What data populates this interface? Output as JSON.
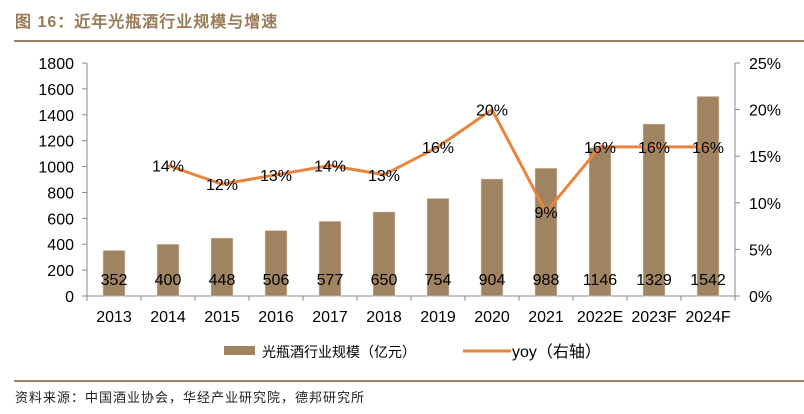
{
  "header": {
    "title": "图 16：近年光瓶酒行业规模与增速"
  },
  "footer": {
    "source": "资料来源：中国酒业协会，华经产业研究院，德邦研究所"
  },
  "colors": {
    "bar": "#a08462",
    "line": "#e8843c",
    "axis": "#888888",
    "accent": "#a08466"
  },
  "chart_data": {
    "type": "bar",
    "title": "近年光瓶酒行业规模与增速",
    "categories": [
      "2013",
      "2014",
      "2015",
      "2016",
      "2017",
      "2018",
      "2019",
      "2020",
      "2021",
      "2022E",
      "2023F",
      "2024F"
    ],
    "series": [
      {
        "name": "光瓶酒行业规模（亿元）",
        "type": "bar",
        "axis": "left",
        "values": [
          352,
          400,
          448,
          506,
          577,
          650,
          754,
          904,
          988,
          1146,
          1329,
          1542
        ],
        "labels": [
          "352",
          "400",
          "448",
          "506",
          "577",
          "650",
          "754",
          "904",
          "988",
          "1146",
          "1329",
          "1542"
        ]
      },
      {
        "name": "yoy（右轴）",
        "type": "line",
        "axis": "right",
        "values": [
          null,
          14,
          12,
          13,
          14,
          13,
          16,
          20,
          9,
          16,
          16,
          16
        ],
        "labels": [
          "",
          "14%",
          "12%",
          "13%",
          "14%",
          "13%",
          "16%",
          "20%",
          "9%",
          "16%",
          "16%",
          "16%"
        ]
      }
    ],
    "y_left": {
      "ylim": [
        0,
        1800
      ],
      "ticks": [
        "0",
        "200",
        "400",
        "600",
        "800",
        "1000",
        "1200",
        "1400",
        "1600",
        "1800"
      ]
    },
    "y_right": {
      "ylim": [
        0,
        25
      ],
      "ticks": [
        "0%",
        "5%",
        "10%",
        "15%",
        "20%",
        "25%"
      ]
    },
    "xlabel": "",
    "ylabel": "",
    "grid": false,
    "legend": {
      "position": "bottom",
      "items": [
        "光瓶酒行业规模（亿元）",
        "yoy（右轴）"
      ]
    }
  }
}
